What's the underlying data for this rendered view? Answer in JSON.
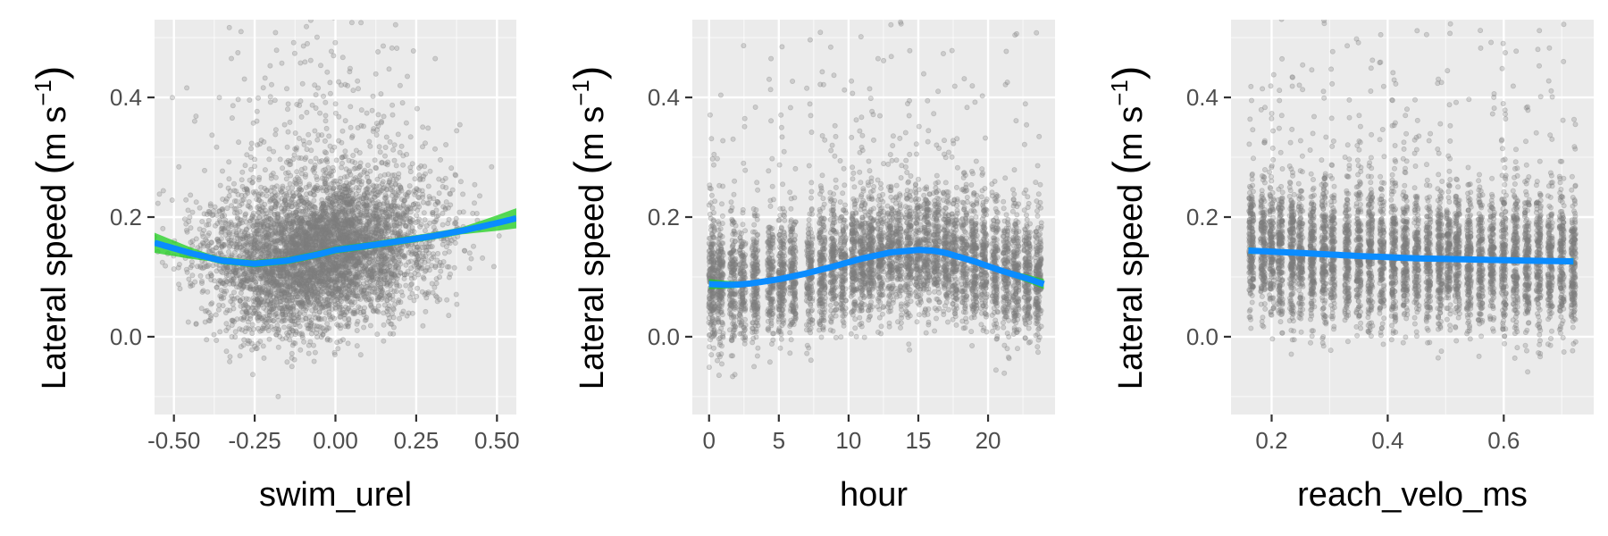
{
  "colors": {
    "panel_bg": "#ebebeb",
    "grid_major": "#ffffff",
    "points": "#7f7f7f",
    "smooth_line": "#0a8cff",
    "ribbon": "#1fd01f",
    "tick_label": "#4d4d4d",
    "axis_title": "#000000"
  },
  "chart_data": [
    {
      "type": "scatter",
      "subtype": "scatter-with-loess-smooth",
      "xlabel": "swim_urel",
      "ylabel": "Lateral speed (m s⁻¹)",
      "ylabel_parts": {
        "pre": "Lateral speed",
        "open": "(",
        "unit": "m s",
        "sup": "−1",
        "close": ")"
      },
      "xlim": [
        -0.56,
        0.56
      ],
      "ylim": [
        -0.13,
        0.53
      ],
      "xticks": [
        -0.5,
        -0.25,
        0.0,
        0.25,
        0.5
      ],
      "xtick_labels": [
        "-0.50",
        "-0.25",
        "0.00",
        "0.25",
        "0.50"
      ],
      "yticks": [
        0.0,
        0.2,
        0.4
      ],
      "ytick_labels": [
        "0.0",
        "0.2",
        "0.4"
      ],
      "grid": true,
      "smooth": {
        "x": [
          -0.56,
          -0.45,
          -0.35,
          -0.25,
          -0.15,
          -0.05,
          0.0,
          0.1,
          0.2,
          0.3,
          0.4,
          0.5,
          0.56
        ],
        "y": [
          0.157,
          0.14,
          0.127,
          0.122,
          0.127,
          0.138,
          0.145,
          0.152,
          0.16,
          0.168,
          0.178,
          0.19,
          0.198
        ]
      },
      "ribbon_se": 0.006,
      "point_cloud": {
        "n": 5500,
        "x_dist": {
          "mean": -0.05,
          "sd": 0.17
        },
        "y_sd": 0.06,
        "outlier_fraction": 0.05
      }
    },
    {
      "type": "scatter",
      "subtype": "scatter-with-loess-smooth",
      "xlabel": "hour",
      "ylabel": "Lateral speed (m s⁻¹)",
      "ylabel_parts": {
        "pre": "Lateral speed",
        "open": "(",
        "unit": "m s",
        "sup": "−1",
        "close": ")"
      },
      "xlim": [
        -1.2,
        24.8
      ],
      "ylim": [
        -0.13,
        0.53
      ],
      "xticks": [
        0,
        5,
        10,
        15,
        20
      ],
      "xtick_labels": [
        "0",
        "5",
        "10",
        "15",
        "20"
      ],
      "yticks": [
        0.0,
        0.2,
        0.4
      ],
      "ytick_labels": [
        "0.0",
        "0.2",
        "0.4"
      ],
      "grid": true,
      "smooth": {
        "x": [
          0,
          1,
          2,
          3,
          5,
          7,
          9,
          11,
          13,
          15,
          16,
          17,
          19,
          21,
          23,
          24
        ],
        "y": [
          0.088,
          0.087,
          0.087,
          0.089,
          0.096,
          0.106,
          0.118,
          0.131,
          0.141,
          0.145,
          0.144,
          0.14,
          0.126,
          0.11,
          0.096,
          0.088
        ]
      },
      "ribbon_se": 0.003,
      "point_cloud": {
        "n": 5500,
        "x_clusters": [
          0.2,
          0.8,
          1.7,
          2.4,
          3.3,
          4.4,
          5.2,
          6.0,
          7.2,
          8.1,
          8.9,
          9.6,
          10.4,
          11.0,
          11.6,
          12.3,
          13.0,
          13.6,
          14.3,
          15.0,
          15.6,
          16.3,
          17.0,
          17.6,
          18.3,
          19.0,
          19.7,
          20.5,
          21.3,
          22.0,
          22.8,
          23.6
        ],
        "cluster_width": 0.22,
        "y_sd": 0.05,
        "outlier_fraction": 0.05
      }
    },
    {
      "type": "scatter",
      "subtype": "scatter-with-loess-smooth",
      "xlabel": "reach_velo_ms",
      "ylabel": "Lateral speed (m s⁻¹)",
      "ylabel_parts": {
        "pre": "Lateral speed",
        "open": "(",
        "unit": "m s",
        "sup": "−1",
        "close": ")"
      },
      "xlim": [
        0.13,
        0.755
      ],
      "ylim": [
        -0.13,
        0.53
      ],
      "xticks": [
        0.2,
        0.4,
        0.6
      ],
      "xtick_labels": [
        "0.2",
        "0.4",
        "0.6"
      ],
      "yticks": [
        0.0,
        0.2,
        0.4
      ],
      "ytick_labels": [
        "0.0",
        "0.2",
        "0.4"
      ],
      "grid": true,
      "smooth": {
        "x": [
          0.16,
          0.25,
          0.35,
          0.45,
          0.55,
          0.65,
          0.72
        ],
        "y": [
          0.144,
          0.14,
          0.135,
          0.131,
          0.129,
          0.127,
          0.126
        ]
      },
      "ribbon_se": 0.002,
      "point_cloud": {
        "n": 5500,
        "x_clusters": [
          0.165,
          0.185,
          0.2,
          0.215,
          0.235,
          0.25,
          0.27,
          0.29,
          0.305,
          0.33,
          0.35,
          0.37,
          0.39,
          0.41,
          0.43,
          0.45,
          0.47,
          0.49,
          0.505,
          0.52,
          0.54,
          0.56,
          0.58,
          0.6,
          0.62,
          0.64,
          0.66,
          0.68,
          0.7,
          0.72
        ],
        "cluster_width": 0.004,
        "y_sd": 0.055,
        "outlier_fraction": 0.05
      }
    }
  ]
}
